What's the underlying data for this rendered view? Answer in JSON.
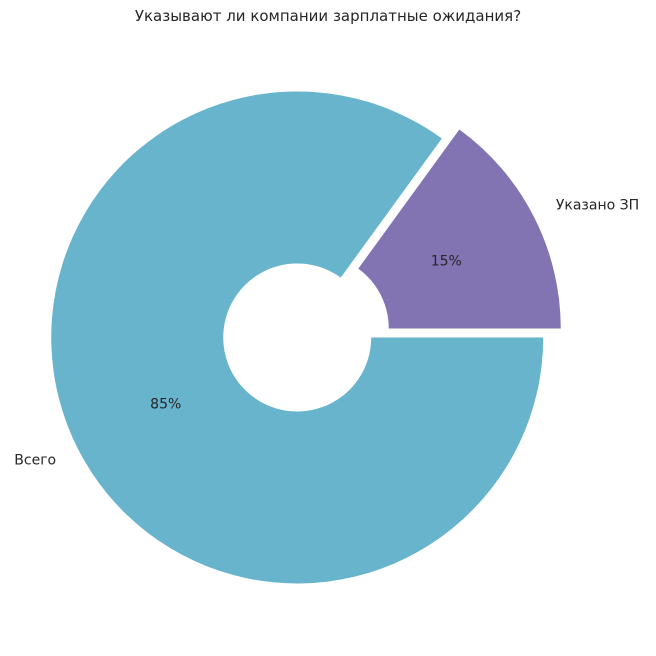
{
  "chart_data": {
    "type": "pie",
    "title": "Указывают ли компании зарплатные ожидания?",
    "donut": true,
    "categories": [
      "Указано ЗП",
      "Всего"
    ],
    "values": [
      15,
      85
    ],
    "value_labels": [
      "15%",
      "85%"
    ],
    "colors": [
      "#8273b3",
      "#67b4cc"
    ],
    "exploded": [
      "Указано ЗП",
      "Всего"
    ],
    "legend": "none"
  }
}
